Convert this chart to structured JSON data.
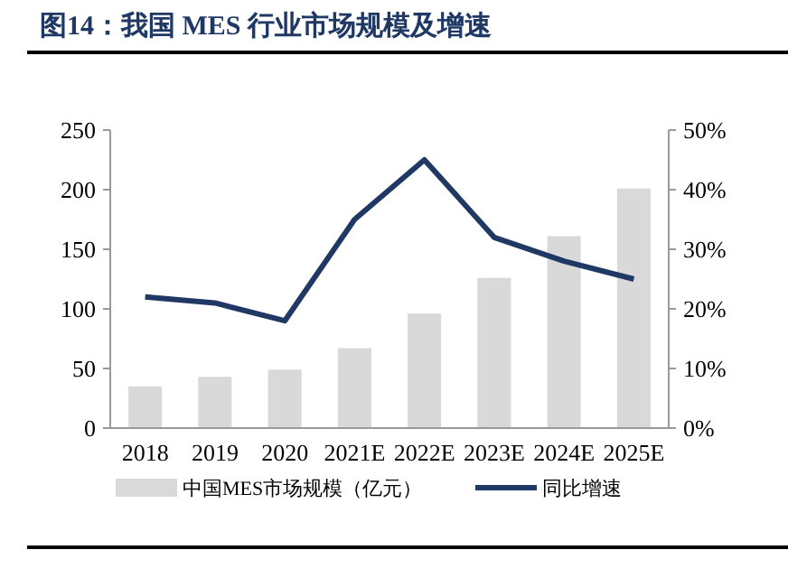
{
  "chart_data": {
    "type": "bar",
    "title": "图14：我国 MES 行业市场规模及增速",
    "categories": [
      "2018",
      "2019",
      "2020",
      "2021E",
      "2022E",
      "2023E",
      "2024E",
      "2025E"
    ],
    "series": [
      {
        "name": "中国MES市场规模（亿元）",
        "color": "#d9d9d9",
        "values": [
          35,
          43,
          49,
          67,
          96,
          126,
          161,
          201
        ]
      },
      {
        "name": "同比增速",
        "type": "line",
        "axis": "y2",
        "color": "#1f3864",
        "values": [
          22,
          21,
          18,
          35,
          45,
          32,
          28,
          25
        ]
      }
    ],
    "ylim": [
      0,
      250
    ],
    "yticks": [
      0,
      50,
      100,
      150,
      200,
      250
    ],
    "y2lim": [
      0,
      50
    ],
    "y2ticks": [
      {
        "value": 0,
        "label": "0%"
      },
      {
        "value": 10,
        "label": "10%"
      },
      {
        "value": 20,
        "label": "20%"
      },
      {
        "value": 30,
        "label": "30%"
      },
      {
        "value": 40,
        "label": "40%"
      },
      {
        "value": 50,
        "label": "50%"
      }
    ],
    "grid": false,
    "legend": "bottom",
    "marker": "none",
    "line_style": "solid"
  }
}
